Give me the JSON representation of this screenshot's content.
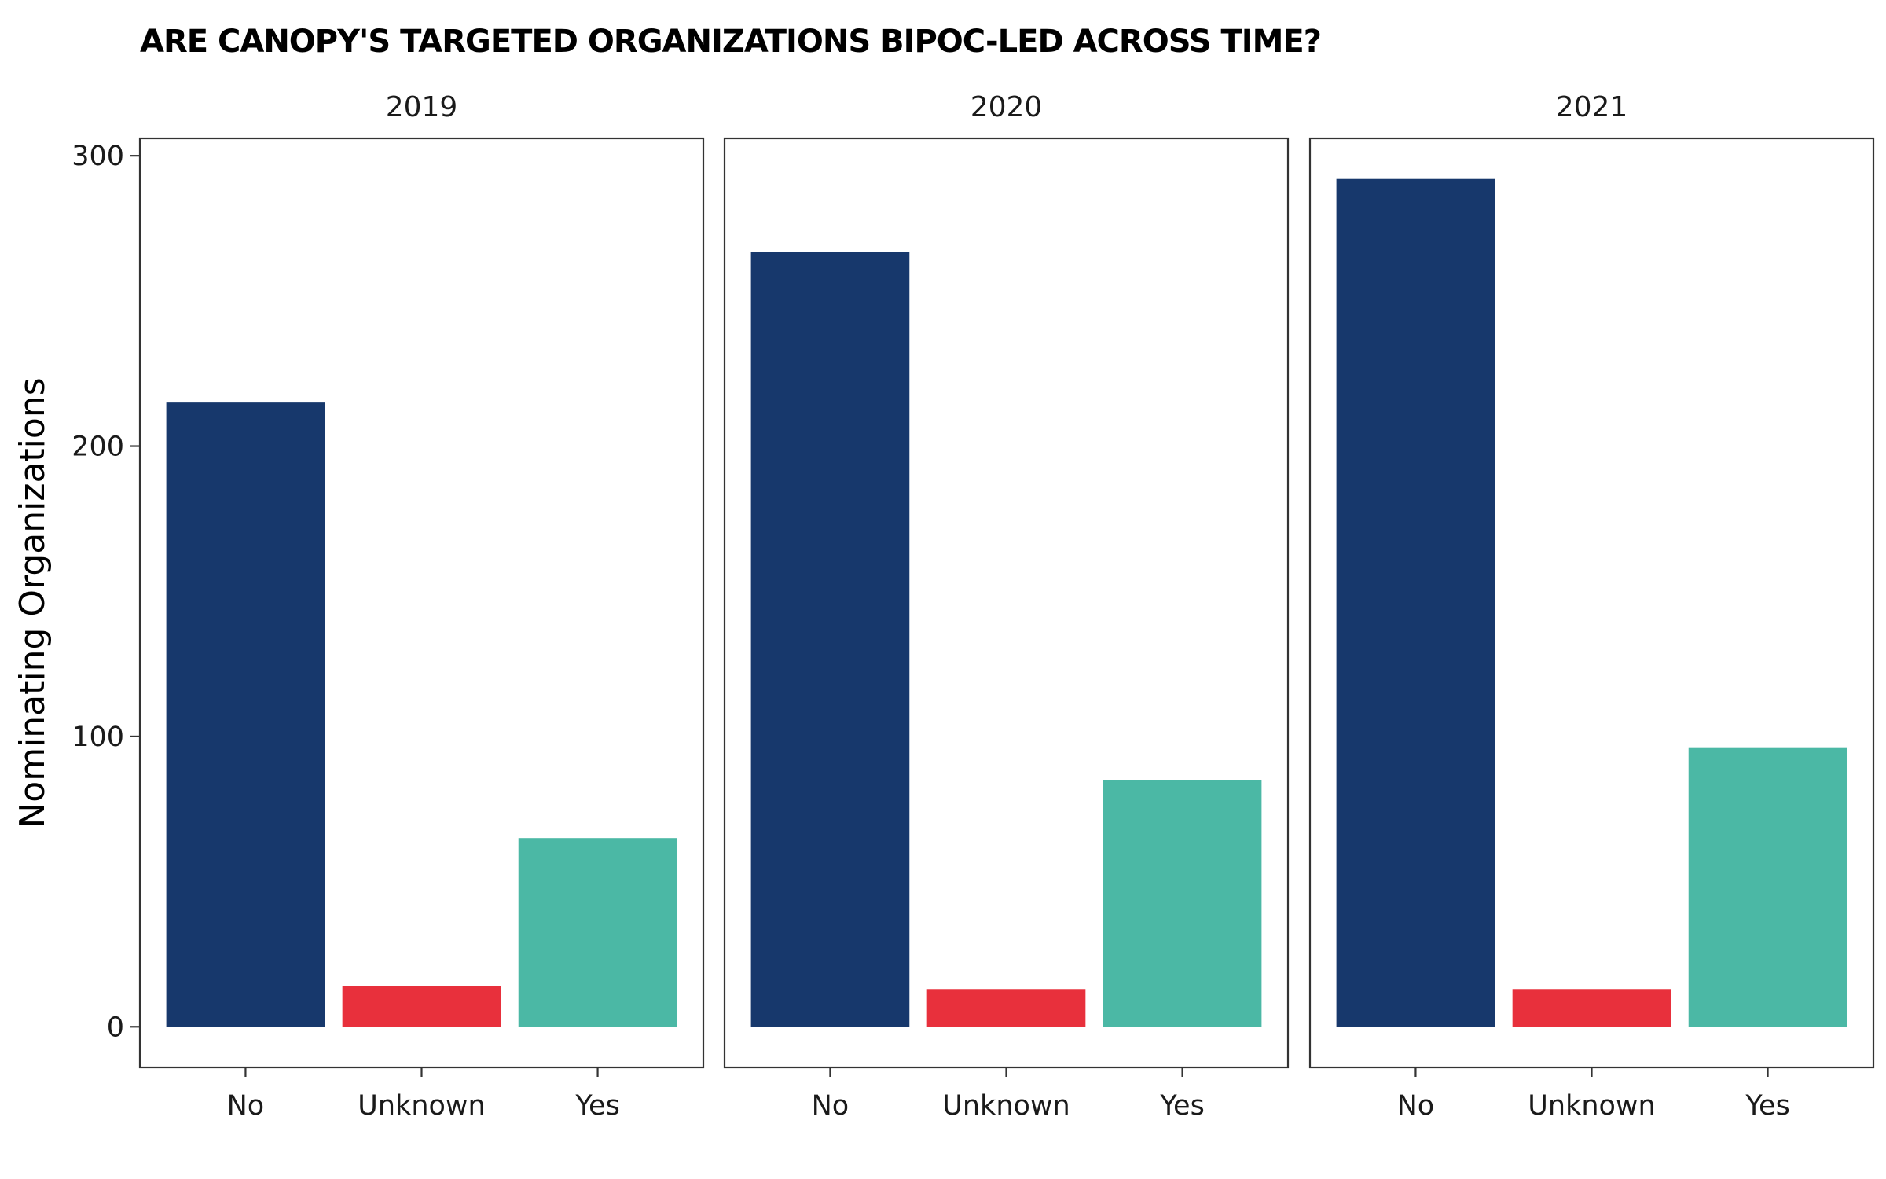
{
  "chart_data": {
    "type": "bar",
    "title": "ARE CANOPY'S TARGETED ORGANIZATIONS BIPOC-LED ACROSS TIME?",
    "xlabel": "",
    "ylabel": "Nominating Organizations",
    "ylim": [
      -14,
      306
    ],
    "yticks": [
      0,
      100,
      200,
      300
    ],
    "grid": false,
    "legend": "none",
    "categories": [
      "No",
      "Unknown",
      "Yes"
    ],
    "colors": {
      "No": "#17386c",
      "Unknown": "#e8303c",
      "Yes": "#4bb8a5"
    },
    "panels": [
      {
        "facet": "2019",
        "values": [
          215,
          14,
          65
        ]
      },
      {
        "facet": "2020",
        "values": [
          267,
          13,
          85
        ]
      },
      {
        "facet": "2021",
        "values": [
          292,
          13,
          96
        ]
      }
    ]
  }
}
